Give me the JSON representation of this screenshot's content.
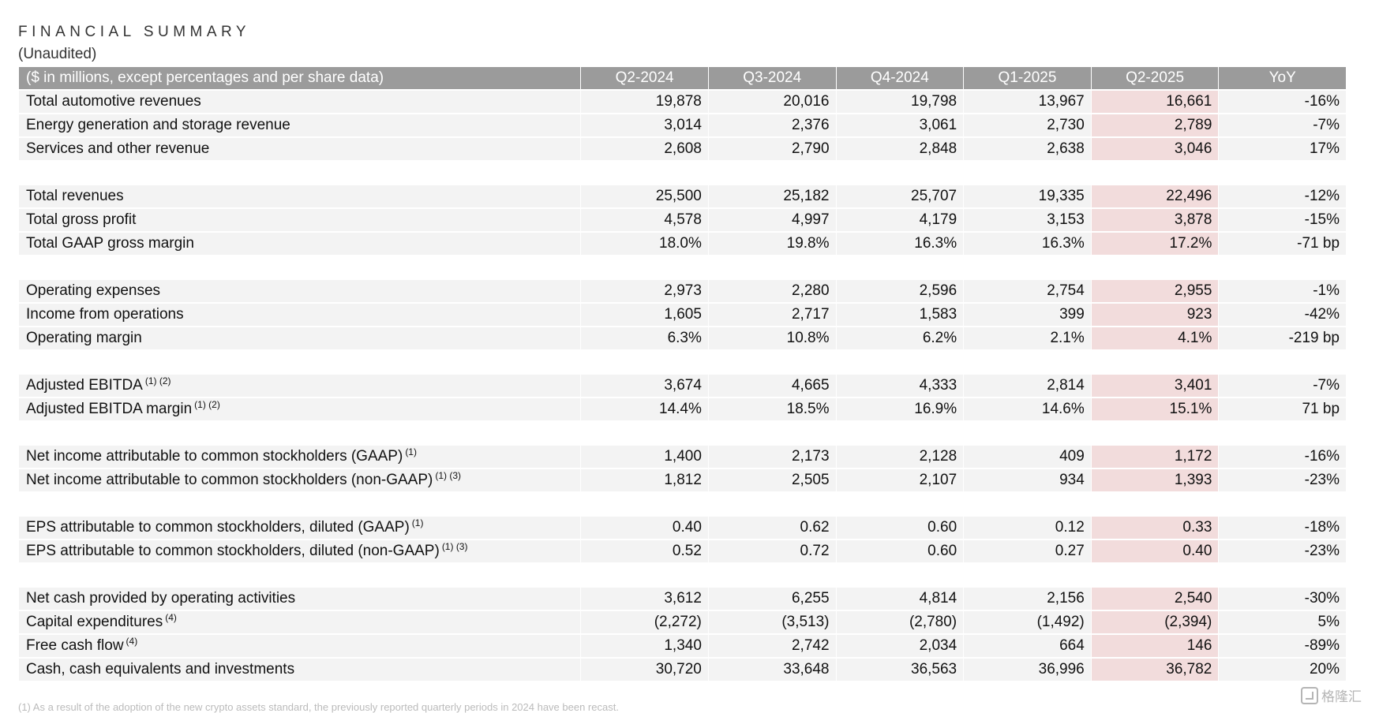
{
  "title": "FINANCIAL SUMMARY",
  "subtitle": "(Unaudited)",
  "table": {
    "header": {
      "label": "($ in millions, except percentages and per share data)",
      "columns": [
        "Q2-2024",
        "Q3-2024",
        "Q4-2024",
        "Q1-2025",
        "Q2-2025",
        "YoY"
      ]
    },
    "highlight_column_index": 4,
    "highlight_color": "#f2dcdc",
    "header_color": "#9b9b9b",
    "row_color": "#f3f3f3",
    "groups": [
      [
        {
          "label": "Total automotive revenues",
          "notes": "",
          "values": [
            "19,878",
            "20,016",
            "19,798",
            "13,967",
            "16,661",
            "-16%"
          ]
        },
        {
          "label": "Energy generation and storage revenue",
          "notes": "",
          "values": [
            "3,014",
            "2,376",
            "3,061",
            "2,730",
            "2,789",
            "-7%"
          ]
        },
        {
          "label": "Services and other revenue",
          "notes": "",
          "values": [
            "2,608",
            "2,790",
            "2,848",
            "2,638",
            "3,046",
            "17%"
          ]
        }
      ],
      [
        {
          "label": "Total revenues",
          "notes": "",
          "values": [
            "25,500",
            "25,182",
            "25,707",
            "19,335",
            "22,496",
            "-12%"
          ]
        },
        {
          "label": "Total gross profit",
          "notes": "",
          "values": [
            "4,578",
            "4,997",
            "4,179",
            "3,153",
            "3,878",
            "-15%"
          ]
        },
        {
          "label": "Total GAAP gross margin",
          "notes": "",
          "values": [
            "18.0%",
            "19.8%",
            "16.3%",
            "16.3%",
            "17.2%",
            "-71 bp"
          ]
        }
      ],
      [
        {
          "label": "Operating expenses",
          "notes": "",
          "values": [
            "2,973",
            "2,280",
            "2,596",
            "2,754",
            "2,955",
            "-1%"
          ]
        },
        {
          "label": "Income from operations",
          "notes": "",
          "values": [
            "1,605",
            "2,717",
            "1,583",
            "399",
            "923",
            "-42%"
          ]
        },
        {
          "label": "Operating margin",
          "notes": "",
          "values": [
            "6.3%",
            "10.8%",
            "6.2%",
            "2.1%",
            "4.1%",
            "-219 bp"
          ]
        }
      ],
      [
        {
          "label": "Adjusted EBITDA",
          "notes": "(1) (2)",
          "values": [
            "3,674",
            "4,665",
            "4,333",
            "2,814",
            "3,401",
            "-7%"
          ]
        },
        {
          "label": "Adjusted EBITDA margin",
          "notes": "(1) (2)",
          "values": [
            "14.4%",
            "18.5%",
            "16.9%",
            "14.6%",
            "15.1%",
            "71 bp"
          ]
        }
      ],
      [
        {
          "label": "Net income attributable to common stockholders (GAAP)",
          "notes": "(1)",
          "values": [
            "1,400",
            "2,173",
            "2,128",
            "409",
            "1,172",
            "-16%"
          ]
        },
        {
          "label": "Net income attributable to common stockholders (non-GAAP)",
          "notes": "(1) (3)",
          "values": [
            "1,812",
            "2,505",
            "2,107",
            "934",
            "1,393",
            "-23%"
          ]
        }
      ],
      [
        {
          "label": "EPS attributable to common stockholders, diluted (GAAP)",
          "notes": "(1)",
          "values": [
            "0.40",
            "0.62",
            "0.60",
            "0.12",
            "0.33",
            "-18%"
          ]
        },
        {
          "label": "EPS attributable to common stockholders, diluted (non-GAAP)",
          "notes": "(1) (3)",
          "values": [
            "0.52",
            "0.72",
            "0.60",
            "0.27",
            "0.40",
            "-23%"
          ]
        }
      ],
      [
        {
          "label": "Net cash provided by operating activities",
          "notes": "",
          "values": [
            "3,612",
            "6,255",
            "4,814",
            "2,156",
            "2,540",
            "-30%"
          ]
        },
        {
          "label": "Capital expenditures",
          "notes": "(4)",
          "values": [
            "(2,272)",
            "(3,513)",
            "(2,780)",
            "(1,492)",
            "(2,394)",
            "5%"
          ]
        },
        {
          "label": "Free cash flow",
          "notes": "(4)",
          "values": [
            "1,340",
            "2,742",
            "2,034",
            "664",
            "146",
            "-89%"
          ]
        },
        {
          "label": "Cash, cash equivalents and investments",
          "notes": "",
          "values": [
            "30,720",
            "33,648",
            "36,563",
            "36,996",
            "36,782",
            "20%"
          ]
        }
      ]
    ]
  },
  "footnote": "(1) As a result of the adoption of the new crypto assets standard, the previously reported quarterly periods in 2024 have been recast.",
  "watermark": {
    "icon": "gelonghui-logo-icon",
    "text": "格隆汇"
  }
}
